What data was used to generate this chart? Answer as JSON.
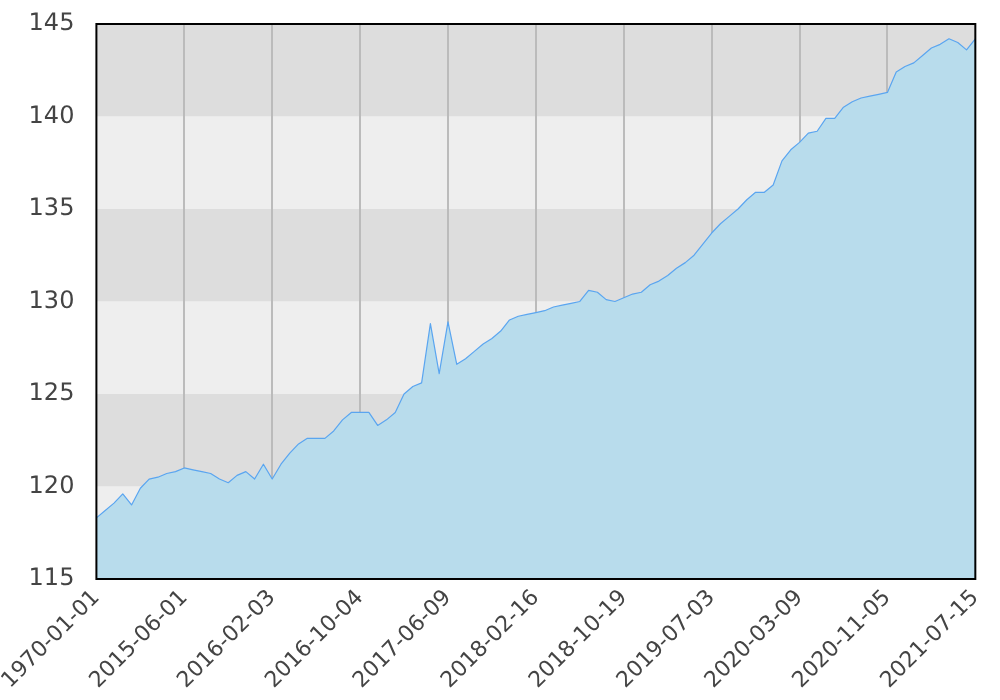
{
  "chart_data": {
    "type": "area",
    "categories": [
      "1970-01-01",
      null,
      null,
      null,
      null,
      null,
      null,
      null,
      null,
      null,
      "2015-06-01",
      null,
      null,
      null,
      null,
      null,
      null,
      null,
      null,
      null,
      "2016-02-03",
      null,
      null,
      null,
      null,
      null,
      null,
      null,
      null,
      null,
      "2016-10-04",
      null,
      null,
      null,
      null,
      null,
      null,
      null,
      null,
      null,
      "2017-06-09",
      null,
      null,
      null,
      null,
      null,
      null,
      null,
      null,
      null,
      "2018-02-16",
      null,
      null,
      null,
      null,
      null,
      null,
      null,
      null,
      null,
      "2018-10-19",
      null,
      null,
      null,
      null,
      null,
      null,
      null,
      null,
      null,
      "2019-07-03",
      null,
      null,
      null,
      null,
      null,
      null,
      null,
      null,
      null,
      "2020-03-09",
      null,
      null,
      null,
      null,
      null,
      null,
      null,
      null,
      null,
      "2020-11-05",
      null,
      null,
      null,
      null,
      null,
      null,
      null,
      null,
      null,
      "2021-07-15"
    ],
    "series": [
      {
        "color": "#5aa5f0",
        "values": [
          118.3,
          118.7,
          119.1,
          119.6,
          119.0,
          119.9,
          120.4,
          120.5,
          120.7,
          120.8,
          121.0,
          120.9,
          120.8,
          120.7,
          120.4,
          120.2,
          120.6,
          120.8,
          120.4,
          121.2,
          120.4,
          121.2,
          121.8,
          122.3,
          122.6,
          122.6,
          122.6,
          123.0,
          123.6,
          124.0,
          124.0,
          124.0,
          123.3,
          123.6,
          124.0,
          125.0,
          125.4,
          125.6,
          128.8,
          126.1,
          128.9,
          126.6,
          126.9,
          127.3,
          127.7,
          128.0,
          128.4,
          129.0,
          129.2,
          129.3,
          129.4,
          129.5,
          129.7,
          129.8,
          129.9,
          130.0,
          130.6,
          130.5,
          130.1,
          130.0,
          130.2,
          130.4,
          130.5,
          130.9,
          131.1,
          131.4,
          131.8,
          132.1,
          132.5,
          133.1,
          133.7,
          134.2,
          134.6,
          135.0,
          135.5,
          135.9,
          135.9,
          136.3,
          137.6,
          138.2,
          138.6,
          139.1,
          139.2,
          139.9,
          139.9,
          140.5,
          140.8,
          141.0,
          141.1,
          141.2,
          141.3,
          142.4,
          142.7,
          142.9,
          143.3,
          143.7,
          143.9,
          144.2,
          144.0,
          143.6,
          144.2
        ]
      }
    ],
    "ylim": [
      115,
      145
    ],
    "yticks": [
      115,
      120,
      125,
      130,
      135,
      140,
      145
    ],
    "grid": true,
    "legend": false
  }
}
